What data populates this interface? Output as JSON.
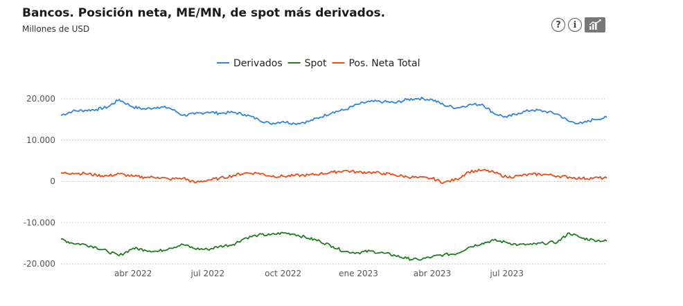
{
  "header": {
    "title": "Bancos. Posición neta, ME/MN, de spot más derivados.",
    "subtitle": "Millones de USD"
  },
  "toolbar": {
    "help_icon": "question-circle-icon",
    "info_icon": "info-circle-icon",
    "data_icon": "data-download-icon",
    "help_symbol": "?",
    "info_symbol": "i"
  },
  "chart_data": {
    "type": "line",
    "title": "Bancos. Posición neta, ME/MN, de spot más derivados.",
    "subtitle": "Millones de USD",
    "xlabel": "",
    "ylabel": "",
    "ylim": [
      -20000,
      20000
    ],
    "y_ticks": [
      20000,
      10000,
      0,
      -10000,
      -20000
    ],
    "y_tick_labels": [
      "20.000",
      "10.000",
      "0",
      "-10.000",
      "-20.000"
    ],
    "x_tick_labels": [
      "abr 2022",
      "jul 2022",
      "oct 2022",
      "ene 2023",
      "abr 2023",
      "jul 2023"
    ],
    "x_tick_dates": [
      "2022-04-01",
      "2022-07-01",
      "2022-10-01",
      "2023-01-01",
      "2023-04-01",
      "2023-07-01"
    ],
    "x_range": [
      "2022-01-03",
      "2023-10-31"
    ],
    "grid": "horizontal dotted",
    "legend_position": "top-center",
    "x": [
      "2022-01-03",
      "2022-01-17",
      "2022-02-01",
      "2022-02-15",
      "2022-03-01",
      "2022-03-15",
      "2022-04-01",
      "2022-04-15",
      "2022-05-01",
      "2022-05-15",
      "2022-06-01",
      "2022-06-15",
      "2022-07-01",
      "2022-07-15",
      "2022-08-01",
      "2022-08-15",
      "2022-09-01",
      "2022-09-15",
      "2022-10-01",
      "2022-10-15",
      "2022-11-01",
      "2022-11-15",
      "2022-12-01",
      "2022-12-15",
      "2023-01-01",
      "2023-01-15",
      "2023-02-01",
      "2023-02-15",
      "2023-03-01",
      "2023-03-15",
      "2023-04-01",
      "2023-04-15",
      "2023-05-01",
      "2023-05-15",
      "2023-06-01",
      "2023-06-15",
      "2023-07-01",
      "2023-07-15",
      "2023-08-01",
      "2023-08-15",
      "2023-09-01",
      "2023-09-15",
      "2023-10-01",
      "2023-10-15",
      "2023-10-31"
    ],
    "series": [
      {
        "name": "Derivados",
        "color": "#2b86e0",
        "values": [
          16000,
          17000,
          17200,
          17400,
          18000,
          19800,
          18000,
          17500,
          18000,
          17800,
          16000,
          16300,
          16800,
          16500,
          16700,
          16200,
          15000,
          14000,
          14500,
          14000,
          14500,
          15500,
          16800,
          17300,
          18700,
          19300,
          19300,
          19000,
          19800,
          20100,
          19800,
          18500,
          17800,
          18500,
          18700,
          16500,
          15500,
          16500,
          17300,
          17000,
          16300,
          14500,
          14000,
          15000,
          15500
        ]
      },
      {
        "name": "Spot",
        "color": "#1e7d1e",
        "values": [
          -14000,
          -15000,
          -15300,
          -16000,
          -17000,
          -18000,
          -16200,
          -16600,
          -17000,
          -16200,
          -15300,
          -16300,
          -16500,
          -15800,
          -15300,
          -13800,
          -13000,
          -13000,
          -12500,
          -12800,
          -13800,
          -14500,
          -15800,
          -17000,
          -17300,
          -16900,
          -17400,
          -18000,
          -18700,
          -19000,
          -18300,
          -17800,
          -17500,
          -16000,
          -15000,
          -14300,
          -14800,
          -15400,
          -15300,
          -15000,
          -14700,
          -12500,
          -13800,
          -14200,
          -14500
        ]
      },
      {
        "name": "Pos. Neta Total",
        "color": "#f04a10",
        "values": [
          2000,
          2000,
          1900,
          1500,
          1300,
          1800,
          1200,
          1000,
          1000,
          500,
          800,
          -300,
          300,
          700,
          1400,
          2000,
          2000,
          1300,
          1200,
          1400,
          1500,
          1800,
          2200,
          2600,
          2200,
          2200,
          1900,
          1500,
          1100,
          900,
          700,
          -300,
          500,
          2300,
          2700,
          2200,
          1000,
          1300,
          1700,
          1700,
          1300,
          1000,
          700,
          800,
          800
        ]
      }
    ]
  }
}
